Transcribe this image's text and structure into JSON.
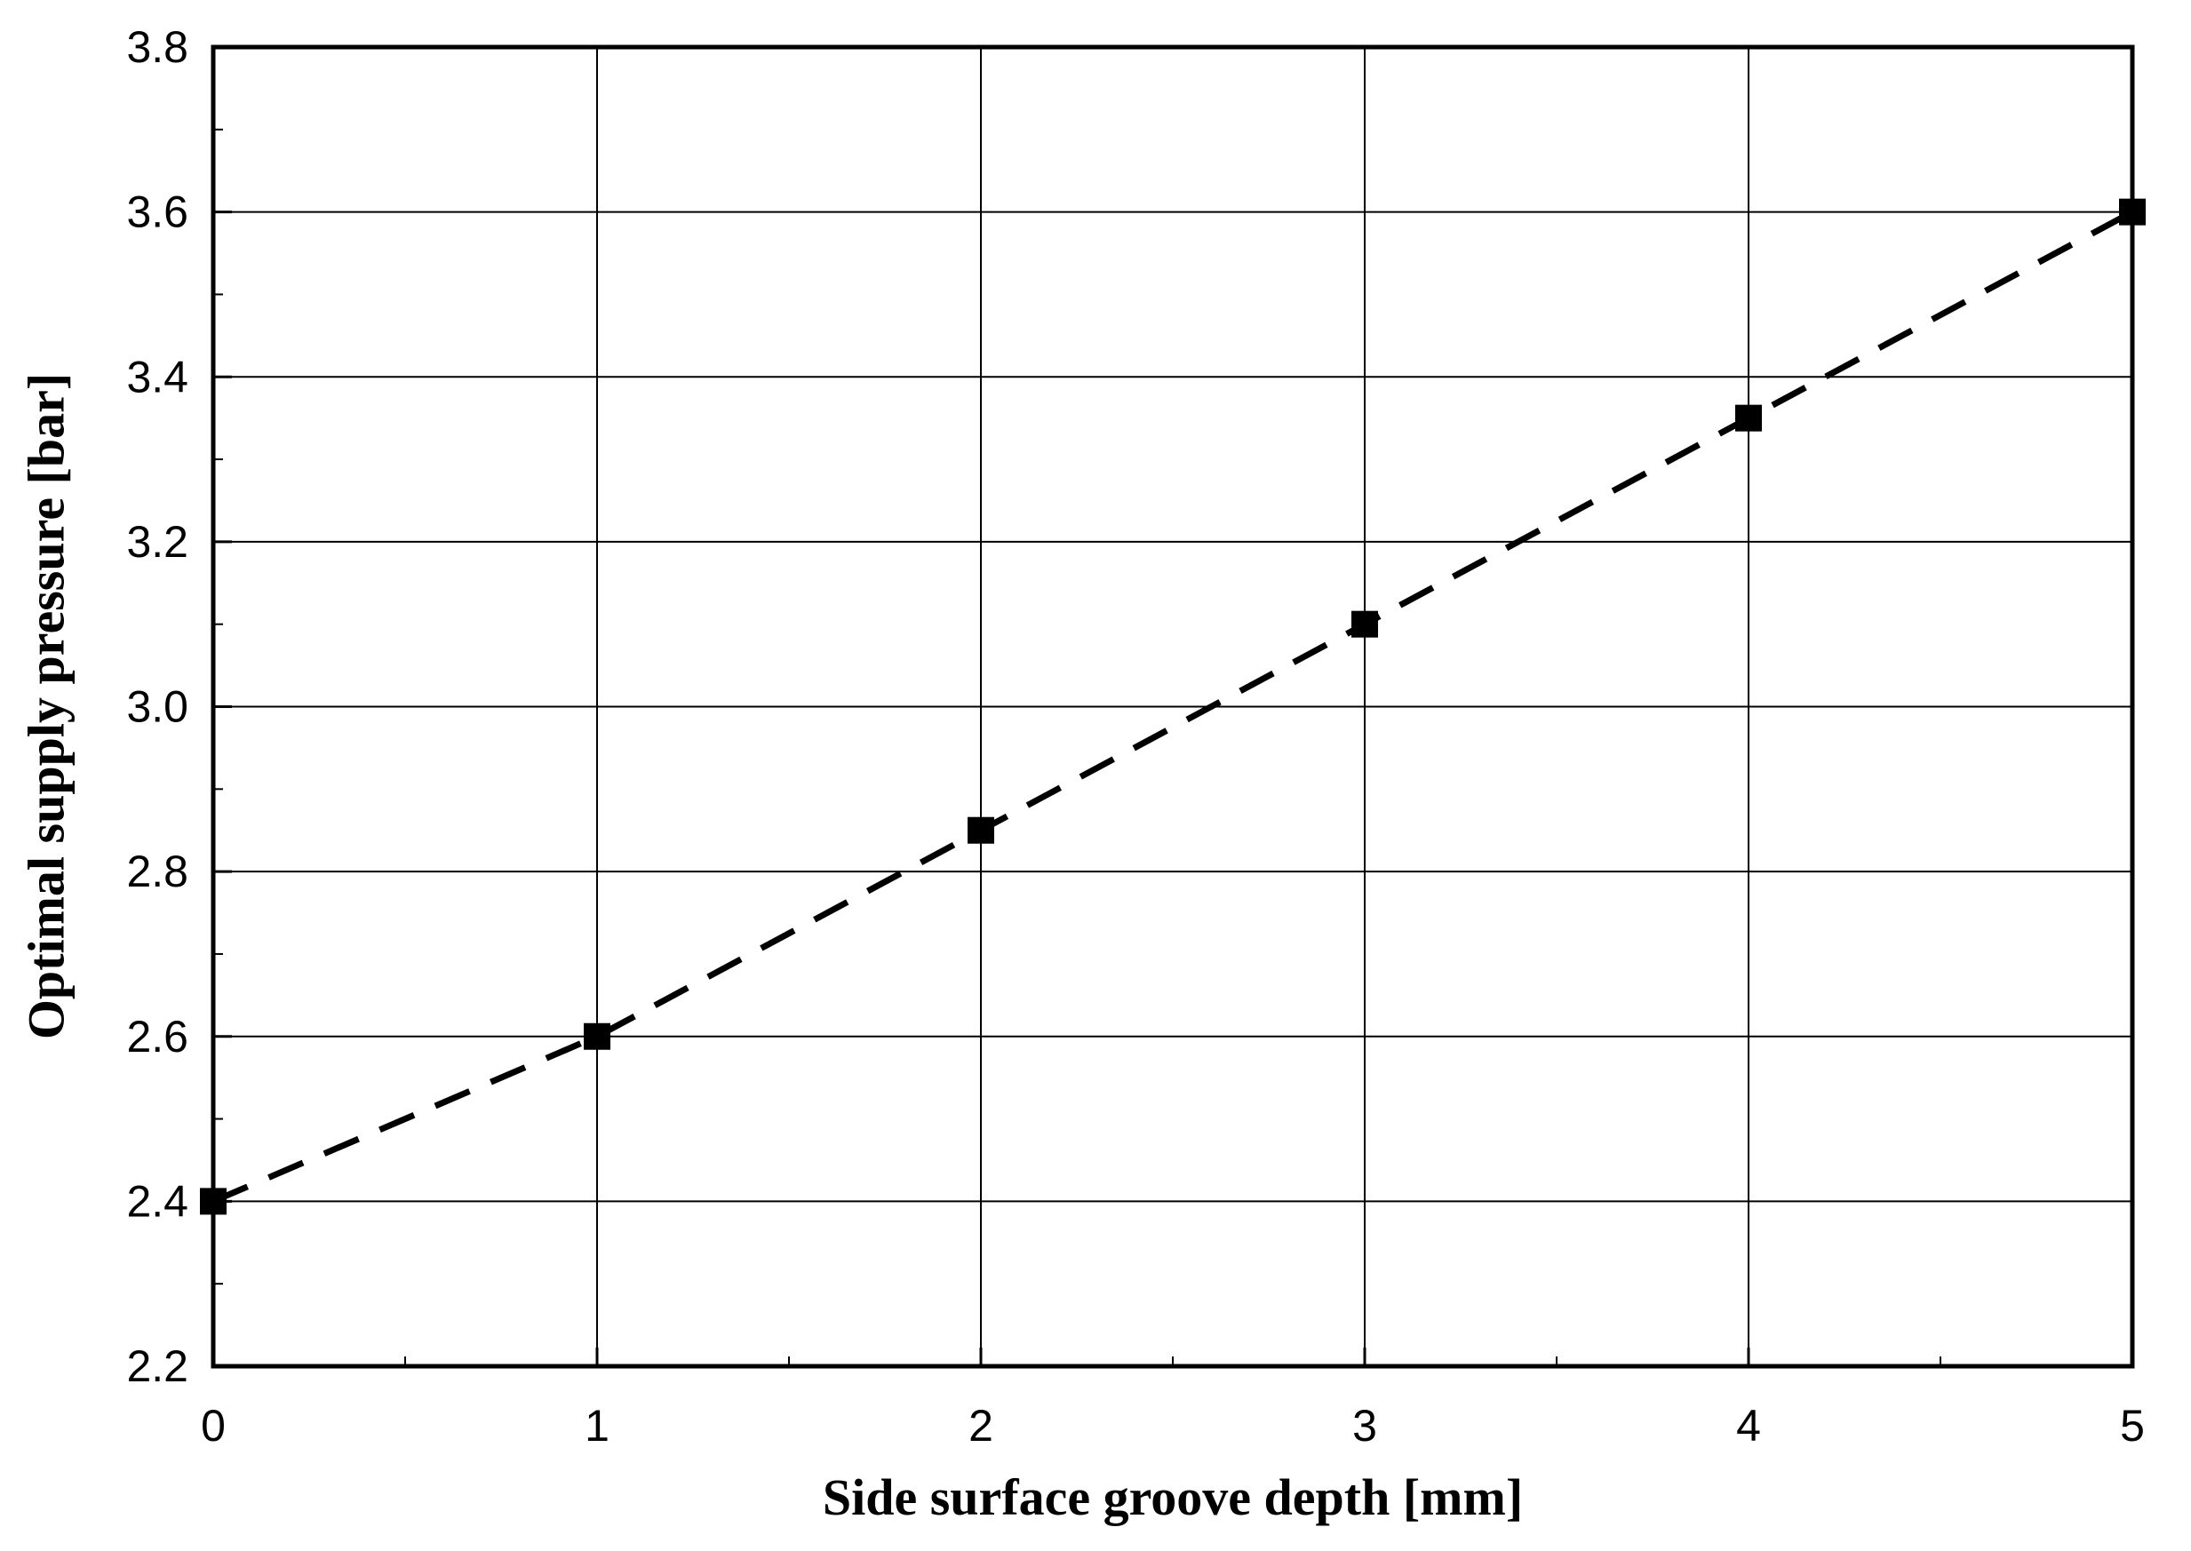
{
  "figure": {
    "background_color": "#ffffff",
    "ink_color": "#000000"
  },
  "chart_data": {
    "type": "line",
    "x": [
      0,
      1,
      2,
      3,
      4,
      5
    ],
    "series": [
      {
        "name": "optimal-supply-pressure",
        "values": [
          2.4,
          2.6,
          2.85,
          3.1,
          3.35,
          3.6
        ]
      }
    ],
    "title": "",
    "xlabel": "Side surface groove depth [mm]",
    "ylabel": "Optimal supply pressure [bar]",
    "xlim": [
      0,
      5
    ],
    "ylim": [
      2.2,
      3.8
    ],
    "x_major_step": 1,
    "x_minor_step": 0.5,
    "y_major_step": 0.2,
    "y_minor_step": 0.1,
    "x_tick_labels": [
      "0",
      "1",
      "2",
      "3",
      "4",
      "5"
    ],
    "y_tick_labels": [
      "2.2",
      "2.4",
      "2.6",
      "2.8",
      "3.0",
      "3.2",
      "3.4",
      "3.6",
      "3.8"
    ],
    "grid": true,
    "legend_position": "none",
    "line_style": "dashed",
    "line_color": "#000000",
    "marker": "square",
    "marker_color": "#000000"
  }
}
